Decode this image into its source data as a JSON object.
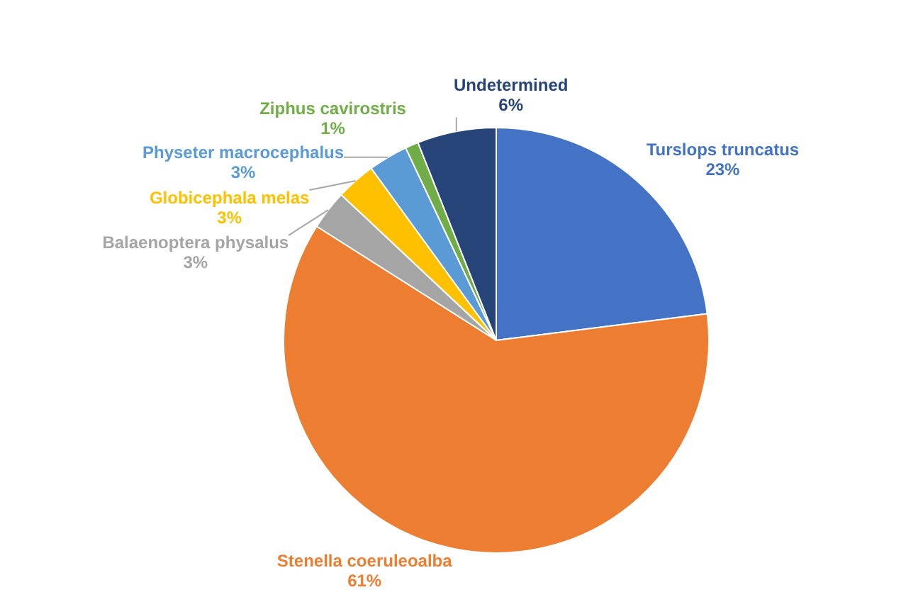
{
  "chart_data": {
    "type": "pie",
    "categories": [
      "Turslops truncatus",
      "Stenella coeruleoalba",
      "Balaenoptera physalus",
      "Globicephala melas",
      "Physeter macrocephalus",
      "Ziphus cavirostris",
      "Undetermined"
    ],
    "values": [
      23,
      61,
      3,
      3,
      3,
      1,
      6
    ],
    "value_labels": [
      "23%",
      "61%",
      "3%",
      "3%",
      "3%",
      "1%",
      "6%"
    ],
    "colors": [
      "#4472c4",
      "#ed7d31",
      "#a5a5a5",
      "#ffc000",
      "#5b9bd5",
      "#70ad47",
      "#264478"
    ],
    "data_labels": true,
    "legend": false
  }
}
